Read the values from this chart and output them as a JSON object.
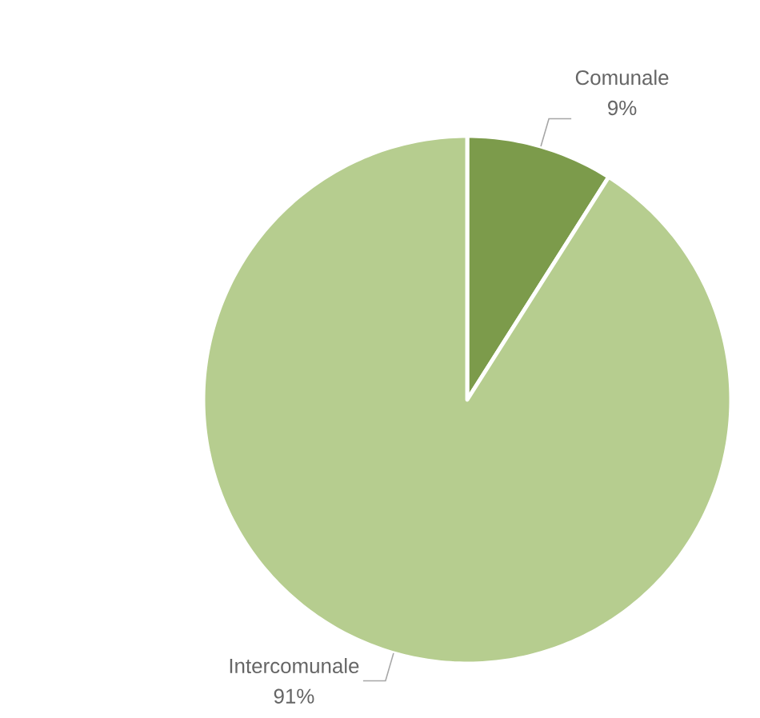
{
  "chart_data": {
    "type": "pie",
    "categories": [
      "Comunale",
      "Intercomunale"
    ],
    "values": [
      9,
      91
    ],
    "value_labels": [
      "9%",
      "91%"
    ],
    "colors": [
      "#7c9b4b",
      "#b6cd8f"
    ]
  }
}
